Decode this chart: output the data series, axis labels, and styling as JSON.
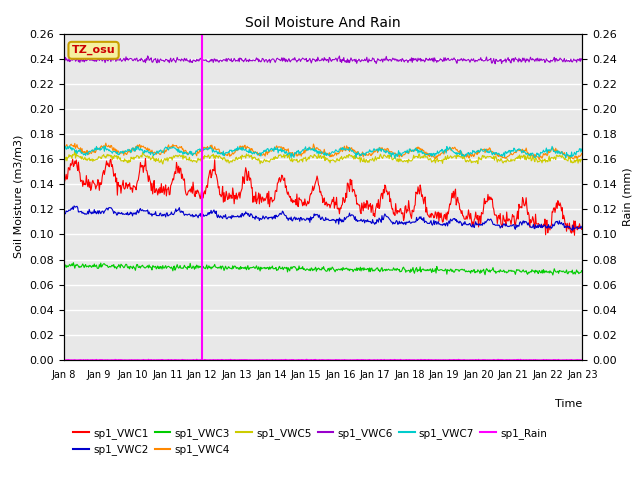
{
  "title": "Soil Moisture And Rain",
  "xlabel": "Time",
  "ylabel_left": "Soil Moisture (m3/m3)",
  "ylabel_right": "Rain (mm)",
  "ylim": [
    0.0,
    0.26
  ],
  "background_color": "#e8e8e8",
  "vline_x": 4,
  "xtick_labels": [
    "Jan 8",
    "Jan 9",
    "Jan 10",
    "Jan 11",
    "Jan 12",
    "Jan 13",
    "Jan 14",
    "Jan 15",
    "Jan 16",
    "Jan 17",
    "Jan 18",
    "Jan 19",
    "Jan 20",
    "Jan 21",
    "Jan 22",
    "Jan 23"
  ],
  "annotation_label": "TZ_osu",
  "annotation_color": "#cc0000",
  "annotation_bg": "#f5f0a0",
  "annotation_border": "#c8a000",
  "series_colors": {
    "sp1_VWC1": "#ff0000",
    "sp1_VWC2": "#0000cc",
    "sp1_VWC3": "#00cc00",
    "sp1_VWC4": "#ff8800",
    "sp1_VWC5": "#cccc00",
    "sp1_VWC6": "#9900cc",
    "sp1_VWC7": "#00cccc",
    "sp1_Rain": "#ff00ff"
  }
}
